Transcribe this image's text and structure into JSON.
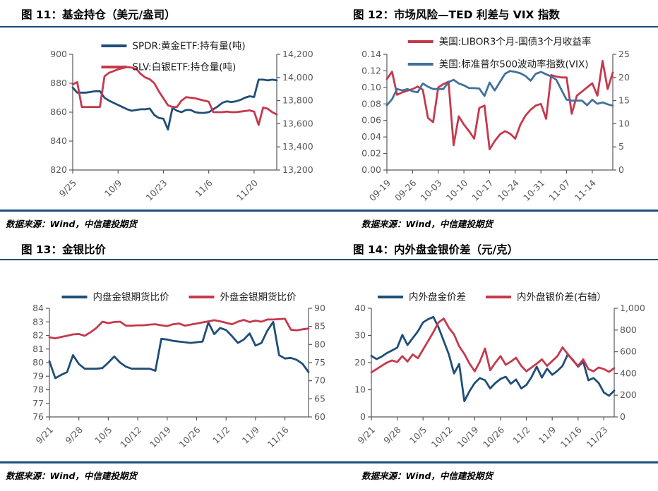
{
  "page": {
    "rule_color": "#1F4E79",
    "axis_label_color": "#595959",
    "axis_line_color": "#595959",
    "legend_text_color": "#1a1a1a"
  },
  "figures": [
    {
      "title": "图 11：基金持仓（美元/盎司）",
      "source": "数据来源：Wind，中信建投期货"
    },
    {
      "title": "图 12：市场风险—TED 利差与 VIX 指数",
      "source": "数据来源：Wind，中信建投期货"
    },
    {
      "title": "图 13：金银比价",
      "source": "数据来源：Wind，中信建投期货"
    },
    {
      "title": "图 14：内外盘金银价差（元/克）",
      "source": "数据来源：Wind，中信建投期货"
    }
  ],
  "chart_data": [
    {
      "type": "line",
      "title": "图 11：基金持仓（美元/盎司）",
      "legend_layout": "stacked",
      "legend_position": "top-center",
      "grid": false,
      "x_labels": [
        "9/25",
        "10/9",
        "10/23",
        "11/6",
        "11/20"
      ],
      "x_tick_indices": [
        0,
        10,
        20,
        30,
        40
      ],
      "left_axis": {
        "min": 820,
        "max": 900,
        "tick_labels": [
          "900",
          "880",
          "860",
          "840",
          "820"
        ]
      },
      "right_axis": {
        "min": 13200,
        "max": 14200,
        "tick_labels": [
          "14,200",
          "14,000",
          "13,800",
          "13,600",
          "13,400",
          "13,200"
        ]
      },
      "series": [
        {
          "name": "SPDR:黄金ETF:持有量(吨)",
          "color": "#1F4E79",
          "axis": "left",
          "values": [
            877,
            873.5,
            873.5,
            873.5,
            874,
            874.5,
            874.5,
            870,
            868,
            866.5,
            865,
            863.5,
            862,
            861,
            861.5,
            862,
            862,
            862.5,
            858,
            856,
            855.5,
            848,
            863,
            861,
            860,
            861.5,
            861.5,
            860,
            859.5,
            859.5,
            860,
            862,
            864,
            866.5,
            867.5,
            867,
            867.5,
            868.5,
            870,
            871,
            870.5,
            882.5,
            882.5,
            882,
            882.5,
            882
          ]
        },
        {
          "name": "SLV:白银ETF:持仓量(吨)",
          "color": "#C5394D",
          "axis": "right",
          "values": [
            13940,
            13960,
            13745,
            13745,
            13745,
            13745,
            13745,
            14010,
            14040,
            14055,
            14070,
            14080,
            14090,
            14085,
            14075,
            14030,
            14000,
            13985,
            13950,
            13880,
            13820,
            13760,
            13745,
            13745,
            13800,
            13830,
            13825,
            13820,
            13810,
            13800,
            13790,
            13700,
            13700,
            13700,
            13705,
            13700,
            13700,
            13705,
            13710,
            13715,
            13705,
            13590,
            13740,
            13730,
            13700,
            13680
          ]
        }
      ]
    },
    {
      "type": "line",
      "title": "图 12：市场风险—TED 利差与 VIX 指数",
      "legend_layout": "stacked",
      "legend_position": "top-center",
      "grid": false,
      "x_labels": [
        "09-19",
        "09-26",
        "10-03",
        "10-10",
        "10-17",
        "10-24",
        "10-31",
        "11-07",
        "11-14"
      ],
      "x_tick_indices": [
        0,
        5,
        10,
        15,
        20,
        25,
        30,
        35,
        40
      ],
      "left_axis": {
        "min": 0,
        "max": 0.14,
        "tick_labels": [
          "0.14",
          "0.12",
          "0.10",
          "0.08",
          "0.06",
          "0.04",
          "0.02",
          "0.00"
        ]
      },
      "right_axis": {
        "min": 0,
        "max": 25,
        "tick_labels": [
          "25",
          "20",
          "15",
          "10",
          "5",
          "0"
        ]
      },
      "series": [
        {
          "name": "美国:LIBOR3个月-国债3个月收益率",
          "color": "#C5394D",
          "axis": "left",
          "values": [
            0.11,
            0.119,
            0.091,
            0.094,
            0.096,
            0.098,
            0.101,
            0.097,
            0.063,
            0.058,
            0.1,
            0.104,
            0.107,
            0.03,
            0.065,
            0.055,
            0.047,
            0.038,
            0.075,
            0.078,
            0.025,
            0.035,
            0.043,
            0.047,
            0.044,
            0.038,
            0.055,
            0.066,
            0.073,
            0.078,
            0.08,
            0.062,
            0.115,
            0.113,
            0.112,
            0.112,
            0.068,
            0.09,
            0.095,
            0.1,
            0.105,
            0.09,
            0.132,
            0.098,
            0.118
          ]
        },
        {
          "name": "美国:标准普尔500波动率指数(VIX)",
          "color": "#41719C",
          "axis": "right",
          "values": [
            14.0,
            15.3,
            17.5,
            17.2,
            17.5,
            17.0,
            16.8,
            18.7,
            18.0,
            17.5,
            17.5,
            17.5,
            19.0,
            19.5,
            18.7,
            18.3,
            17.7,
            17.7,
            17.6,
            16.0,
            18.9,
            17.2,
            19.0,
            20.8,
            21.4,
            21.2,
            20.9,
            20.3,
            19.3,
            20.8,
            21.2,
            20.7,
            20.2,
            19.5,
            17.3,
            15.2,
            15.0,
            15.0,
            15.0,
            14.0,
            15.2,
            14.3,
            14.6,
            14.2,
            13.9
          ]
        }
      ]
    },
    {
      "type": "line",
      "title": "图 13：金银比价",
      "legend_layout": "row",
      "legend_position": "top-center",
      "grid": false,
      "x_labels": [
        "9/21",
        "9/28",
        "10/5",
        "10/12",
        "10/19",
        "10/26",
        "11/2",
        "11/9",
        "11/16"
      ],
      "x_tick_indices": [
        0,
        5,
        10,
        15,
        20,
        25,
        30,
        35,
        40
      ],
      "left_axis": {
        "min": 76,
        "max": 84,
        "tick_labels": [
          "84",
          "83",
          "82",
          "81",
          "80",
          "79",
          "78",
          "77",
          "76"
        ]
      },
      "right_axis": {
        "min": 60,
        "max": 90,
        "tick_labels": [
          "90",
          "85",
          "80",
          "75",
          "70",
          "65",
          "60"
        ]
      },
      "series": [
        {
          "name": "内盘金银期货比价",
          "color": "#1F4E79",
          "axis": "left",
          "values": [
            80.1,
            78.85,
            79.1,
            79.3,
            80.55,
            79.9,
            79.55,
            79.55,
            79.55,
            79.6,
            80.0,
            80.45,
            80.0,
            79.7,
            79.55,
            79.55,
            79.55,
            79.55,
            79.4,
            81.75,
            81.7,
            81.6,
            81.55,
            81.5,
            81.45,
            81.5,
            81.55,
            82.95,
            82.1,
            82.55,
            82.4,
            81.95,
            81.45,
            81.7,
            82.15,
            81.25,
            81.45,
            82.35,
            83.0,
            80.55,
            80.3,
            80.35,
            80.2,
            79.9,
            79.3
          ]
        },
        {
          "name": "外盘金银期货比价",
          "color": "#C5394D",
          "axis": "right",
          "values": [
            82.0,
            81.7,
            82.1,
            82.4,
            82.8,
            82.9,
            82.4,
            83.4,
            84.6,
            86.3,
            85.9,
            86.2,
            86.3,
            85.2,
            85.2,
            85.3,
            85.3,
            85.5,
            85.6,
            85.3,
            85.1,
            85.6,
            85.8,
            85.2,
            85.5,
            85.8,
            86.1,
            86.4,
            86.7,
            86.4,
            86.0,
            85.6,
            86.3,
            86.8,
            86.2,
            86.6,
            86.3,
            86.9,
            86.9,
            87.0,
            87.1,
            84.1,
            83.9,
            84.2,
            84.4
          ]
        }
      ]
    },
    {
      "type": "line",
      "title": "图 14：内外盘金银价差（元/克）",
      "legend_layout": "row",
      "legend_position": "top-center",
      "grid": false,
      "x_labels": [
        "9/21",
        "9/28",
        "10/5",
        "10/12",
        "10/19",
        "10/26",
        "11/2",
        "11/9",
        "11/16",
        "11/23"
      ],
      "x_tick_indices": [
        0,
        5,
        10,
        15,
        20,
        25,
        30,
        35,
        40,
        45
      ],
      "left_axis": {
        "min": 0,
        "max": 40,
        "tick_labels": [
          "40",
          "30",
          "20",
          "10",
          "0"
        ]
      },
      "right_axis": {
        "min": 0,
        "max": 1000,
        "tick_labels": [
          "1,000",
          "800",
          "600",
          "400",
          "200",
          "0"
        ]
      },
      "series": [
        {
          "name": "内外盘金价差",
          "color": "#1F4E79",
          "axis": "left",
          "values": [
            22.5,
            21.3,
            22.2,
            23.5,
            24.5,
            25.5,
            30.2,
            26.5,
            29.0,
            31.5,
            34.8,
            36.0,
            36.8,
            33.0,
            28.0,
            23.0,
            16.0,
            19.5,
            5.8,
            9.5,
            12.5,
            14.3,
            13.5,
            10.5,
            12.5,
            14.0,
            14.8,
            12.2,
            13.8,
            10.5,
            11.8,
            14.7,
            18.5,
            14.5,
            17.8,
            15.5,
            17.0,
            18.8,
            23.0,
            21.0,
            18.5,
            20.3,
            13.5,
            14.3,
            12.5,
            9.0,
            7.8,
            9.7
          ]
        },
        {
          "name": "内外盘银价差(右轴）",
          "color": "#C5394D",
          "axis": "right",
          "values": [
            410,
            440,
            470,
            500,
            520,
            505,
            560,
            510,
            575,
            540,
            620,
            700,
            780,
            870,
            905,
            820,
            760,
            650,
            580,
            490,
            420,
            510,
            630,
            430,
            500,
            560,
            480,
            510,
            545,
            470,
            420,
            455,
            490,
            530,
            470,
            515,
            560,
            640,
            580,
            520,
            470,
            530,
            440,
            420,
            455,
            440,
            415,
            450
          ]
        }
      ]
    }
  ]
}
